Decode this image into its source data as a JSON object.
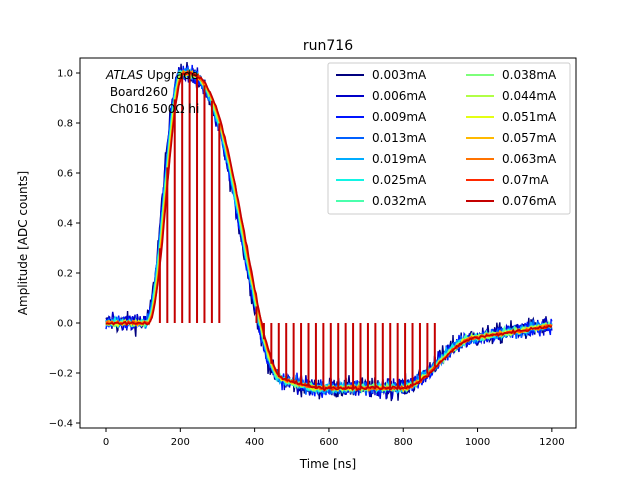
{
  "chart_data": {
    "type": "line",
    "title": "run716",
    "xlabel": "Time [ns]",
    "ylabel": "Amplitude [ADC counts]",
    "xlim": [
      -70,
      1265
    ],
    "ylim": [
      -0.42,
      1.06
    ],
    "xticks": [
      0,
      200,
      400,
      600,
      800,
      1000,
      1200
    ],
    "yticks": [
      -0.4,
      -0.2,
      0.0,
      0.2,
      0.4,
      0.6,
      0.8,
      1.0
    ],
    "xtick_labels": [
      "0",
      "200",
      "400",
      "600",
      "800",
      "1000",
      "1200"
    ],
    "ytick_labels": [
      "−0.4",
      "−0.2",
      "0.0",
      "0.2",
      "0.4",
      "0.6",
      "0.8",
      "1.0"
    ],
    "legend_position": "top-right",
    "annotation": {
      "line1_italic": "ATLAS",
      "line1_rest": " Upgrade",
      "line2": " Board260",
      "line3": " Ch016 500Ω hi"
    },
    "pulse_shape": {
      "baseline": 0.0,
      "peak_x": 205,
      "peak_y": 1.0,
      "undershoot_y": -0.26,
      "undershoot_range": [
        560,
        790
      ],
      "return_x": 1200
    },
    "spike_markers_x": [
      145,
      165,
      185,
      205,
      225,
      245,
      265,
      285,
      305,
      405,
      425,
      445,
      465,
      485,
      505,
      525,
      545,
      565,
      585,
      605,
      625,
      645,
      665,
      685,
      705,
      725,
      745,
      765,
      785,
      805,
      825,
      845,
      865,
      885
    ],
    "series": [
      {
        "name": "0.003mA",
        "color": "#00007f",
        "noise": 0.03
      },
      {
        "name": "0.006mA",
        "color": "#0000c8",
        "noise": 0.026
      },
      {
        "name": "0.009mA",
        "color": "#0014ff",
        "noise": 0.022
      },
      {
        "name": "0.013mA",
        "color": "#0060ff",
        "noise": 0.018
      },
      {
        "name": "0.019mA",
        "color": "#00acff",
        "noise": 0.015
      },
      {
        "name": "0.025mA",
        "color": "#12f4e4",
        "noise": 0.012
      },
      {
        "name": "0.032mA",
        "color": "#4affad",
        "noise": 0.01
      },
      {
        "name": "0.038mA",
        "color": "#7dff7a",
        "noise": 0.009
      },
      {
        "name": "0.044mA",
        "color": "#b1ff46",
        "noise": 0.008
      },
      {
        "name": "0.051mA",
        "color": "#e4ff13",
        "noise": 0.007
      },
      {
        "name": "0.057mA",
        "color": "#ffb900",
        "noise": 0.006
      },
      {
        "name": "0.063mA",
        "color": "#ff7300",
        "noise": 0.006
      },
      {
        "name": "0.07mA",
        "color": "#ff2900",
        "noise": 0.005
      },
      {
        "name": "0.076mA",
        "color": "#c40000",
        "noise": 0.005
      }
    ]
  }
}
